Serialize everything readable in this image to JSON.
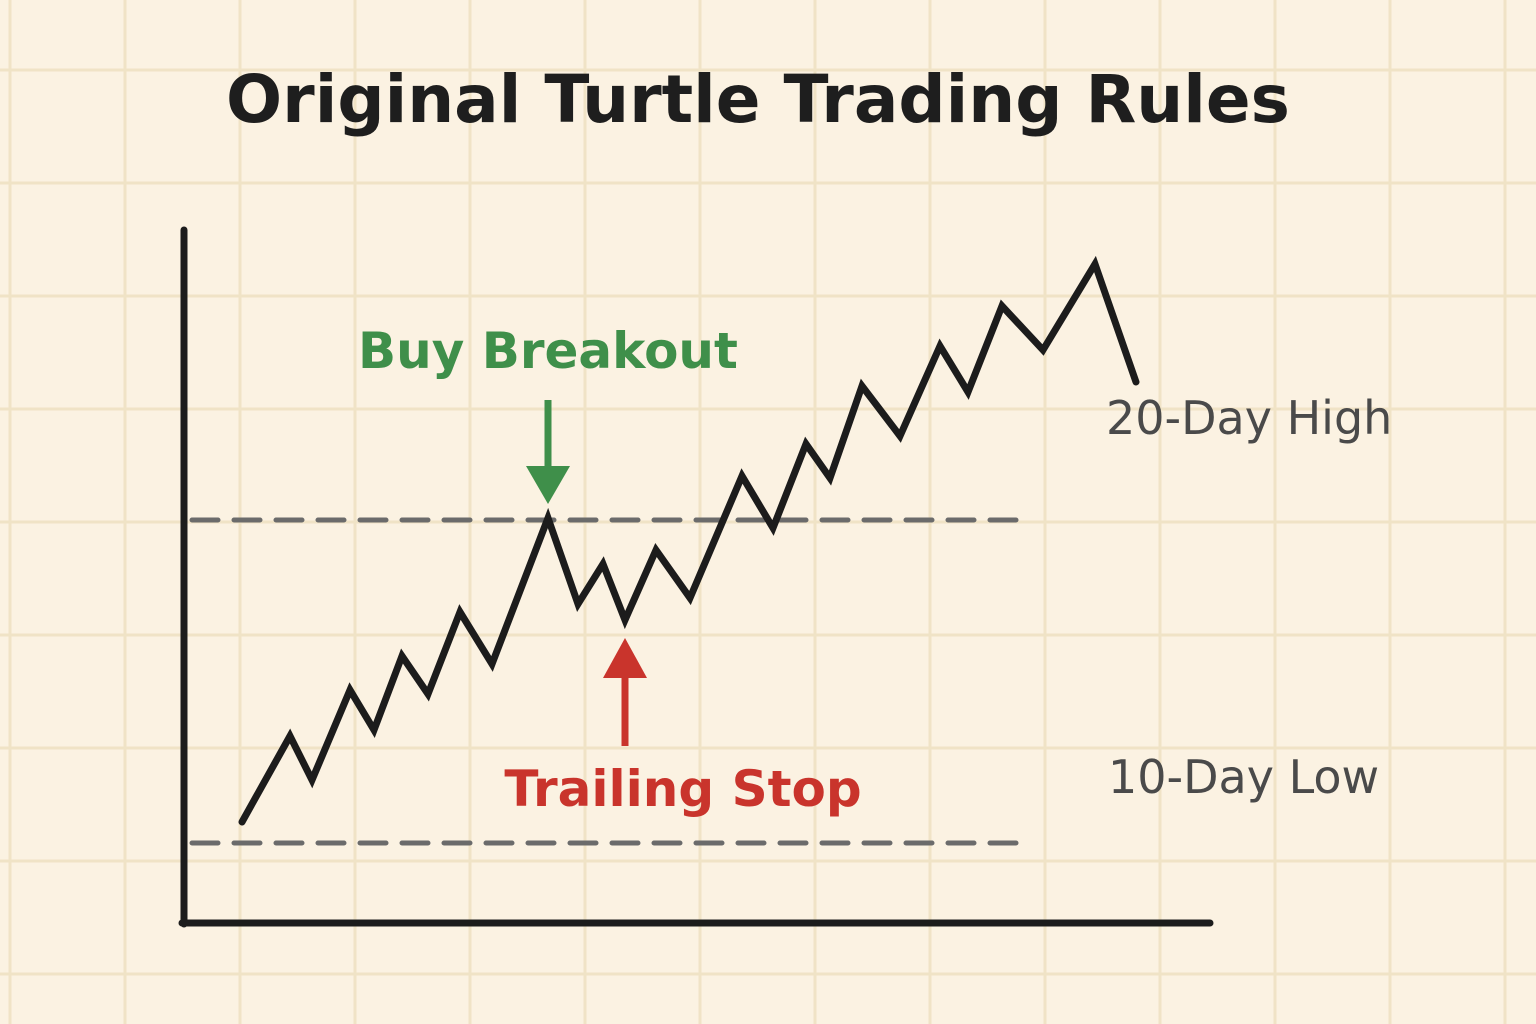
{
  "title": "Original Turtle Trading Rules",
  "annotations": {
    "buy_breakout": "Buy Breakout",
    "trailing_stop": "Trailing Stop"
  },
  "levels": {
    "high_label": "20-Day High",
    "low_label": "10-Day Low"
  },
  "colors": {
    "background": "#fbf2e2",
    "grid": "#f0e3c6",
    "price_line": "#1c1c1c",
    "dashed_level": "#6b6b6b",
    "buy": "#3f8f4a",
    "stop": "#c9342c",
    "title": "#1e1e1e",
    "level_text": "#4a4a4a"
  }
}
